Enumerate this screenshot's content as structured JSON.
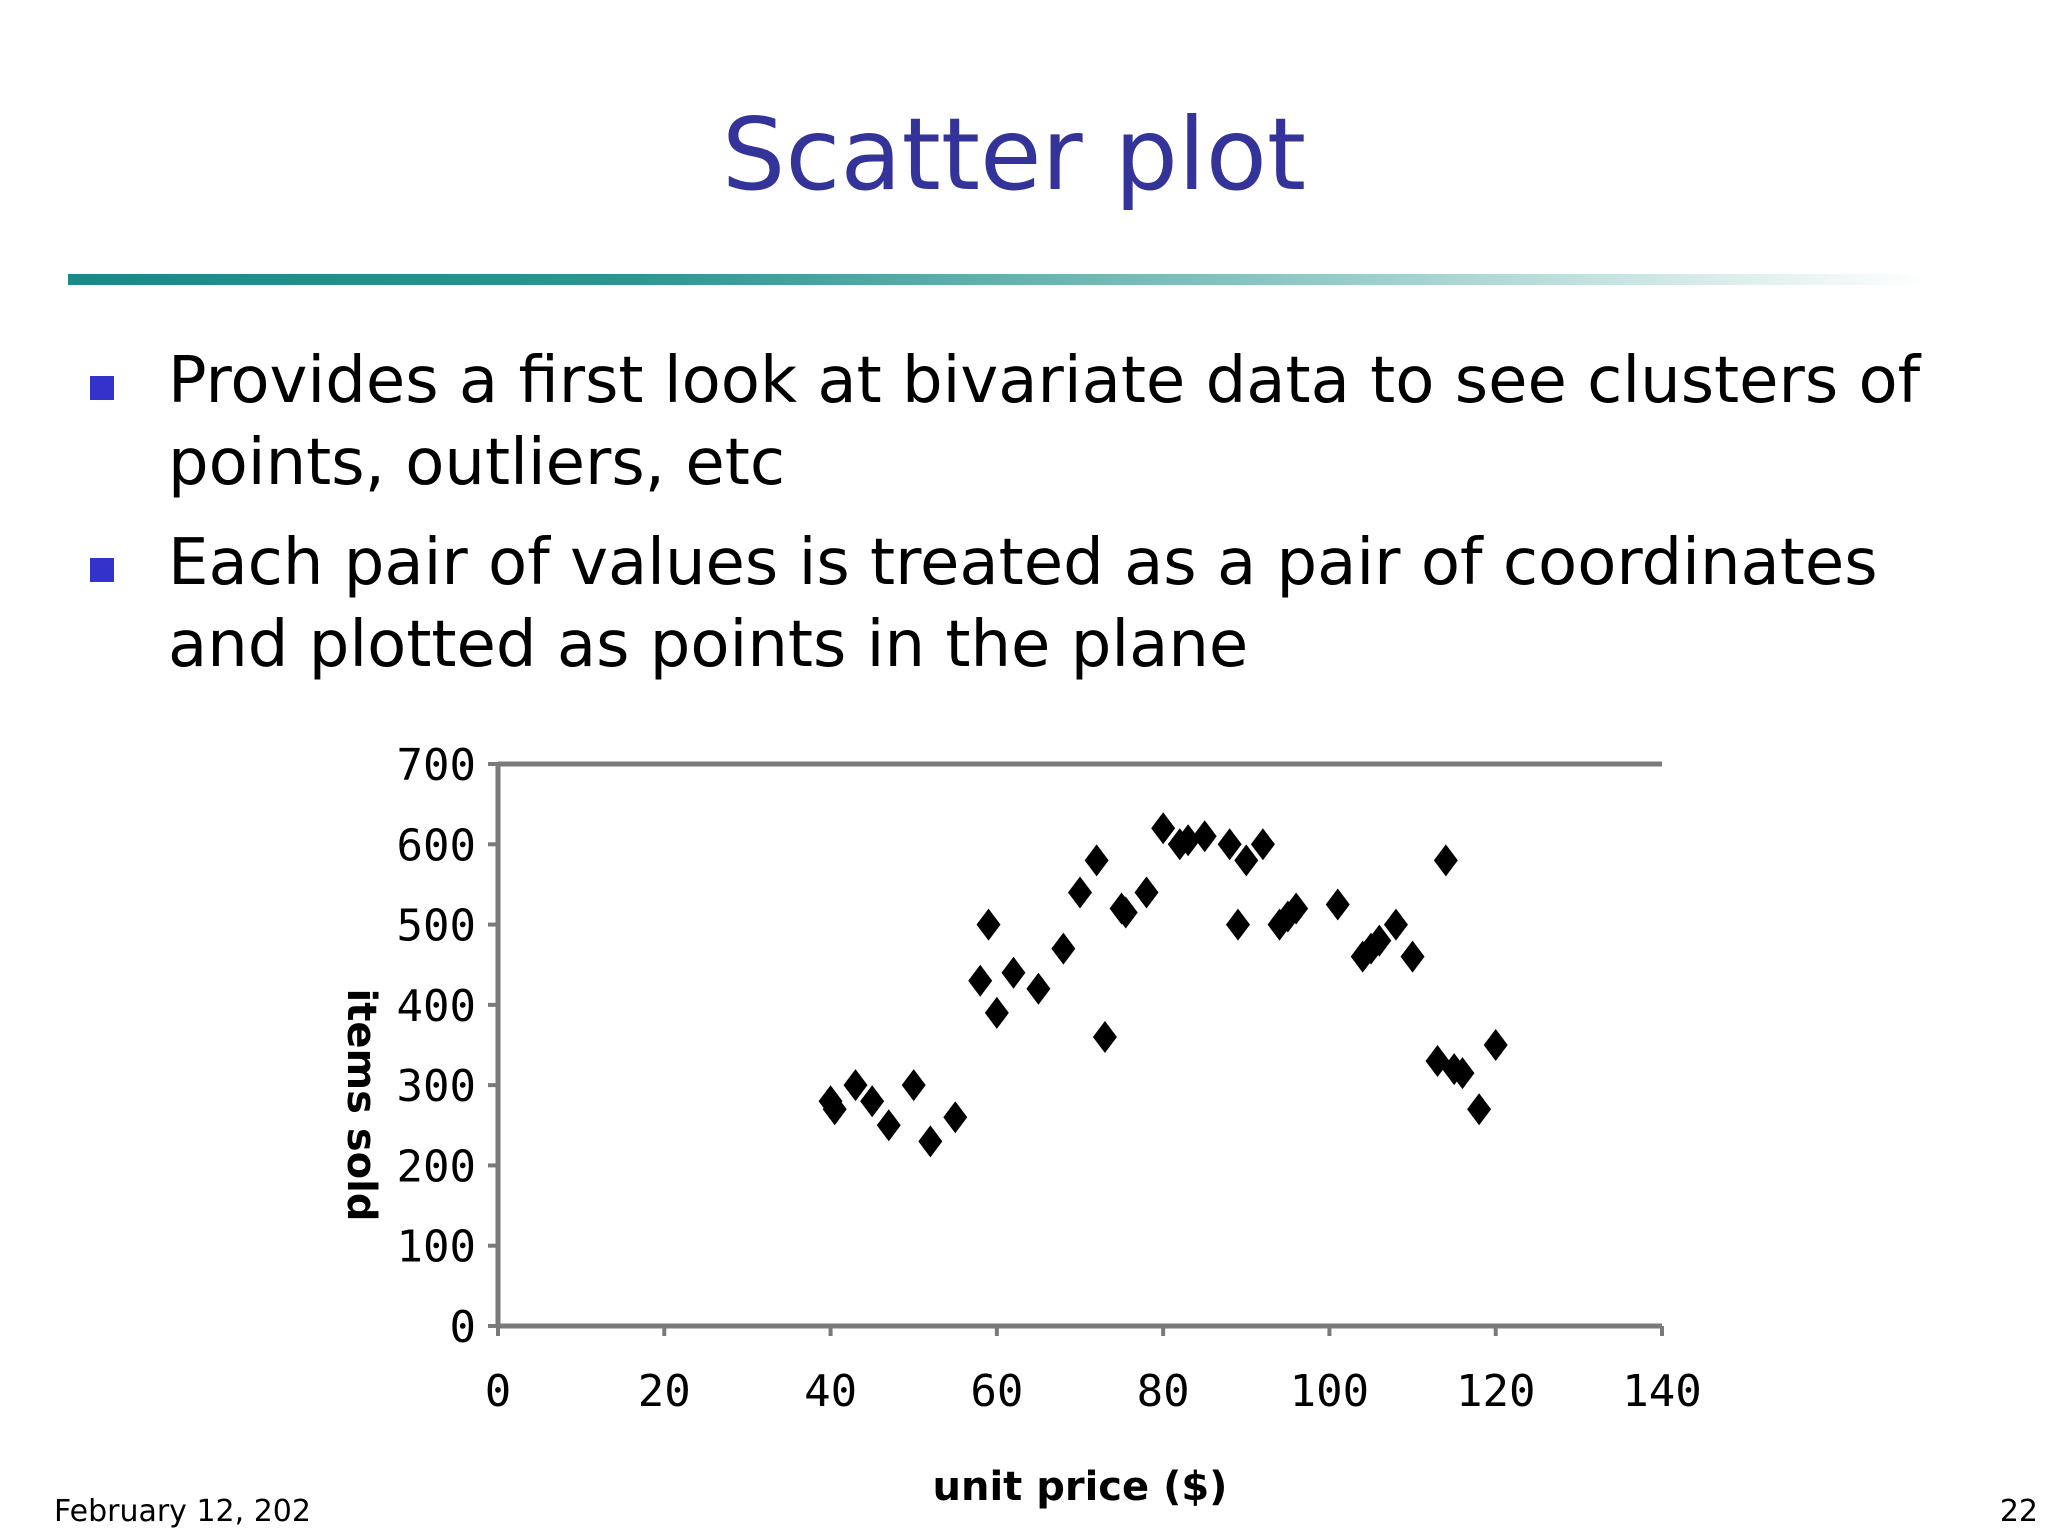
{
  "slide": {
    "title": "Scatter plot",
    "bullets": [
      "Provides a first look at bivariate data to see clusters of points, outliers, etc",
      "Each pair of values is treated as a pair of coordinates and plotted as points in the plane"
    ],
    "footer_date": "February 12, 202",
    "page_number": "22"
  },
  "chart_data": {
    "type": "scatter",
    "title": "",
    "xlabel": "unit price ($)",
    "ylabel": "items sold",
    "xlim": [
      0,
      140
    ],
    "ylim": [
      0,
      700
    ],
    "xticks": [
      0,
      20,
      40,
      60,
      80,
      100,
      120,
      140
    ],
    "yticks": [
      0,
      100,
      200,
      300,
      400,
      500,
      600,
      700
    ],
    "grid": false,
    "marker_color": "#000000",
    "x": [
      40,
      40.5,
      43,
      45,
      47,
      50,
      52,
      55,
      58,
      59,
      60,
      62,
      65,
      68,
      70,
      72,
      73,
      75,
      75.5,
      78,
      80,
      82,
      83,
      85,
      88,
      89,
      90,
      92,
      94,
      95,
      96,
      101,
      104,
      105,
      106,
      108,
      110,
      113,
      114,
      115,
      116,
      118,
      120
    ],
    "y": [
      280,
      270,
      300,
      280,
      250,
      300,
      230,
      260,
      430,
      500,
      390,
      440,
      420,
      470,
      540,
      580,
      360,
      520,
      515,
      540,
      620,
      600,
      605,
      610,
      600,
      500,
      580,
      600,
      500,
      510,
      520,
      525,
      460,
      470,
      480,
      500,
      460,
      330,
      580,
      320,
      315,
      270,
      350
    ]
  }
}
